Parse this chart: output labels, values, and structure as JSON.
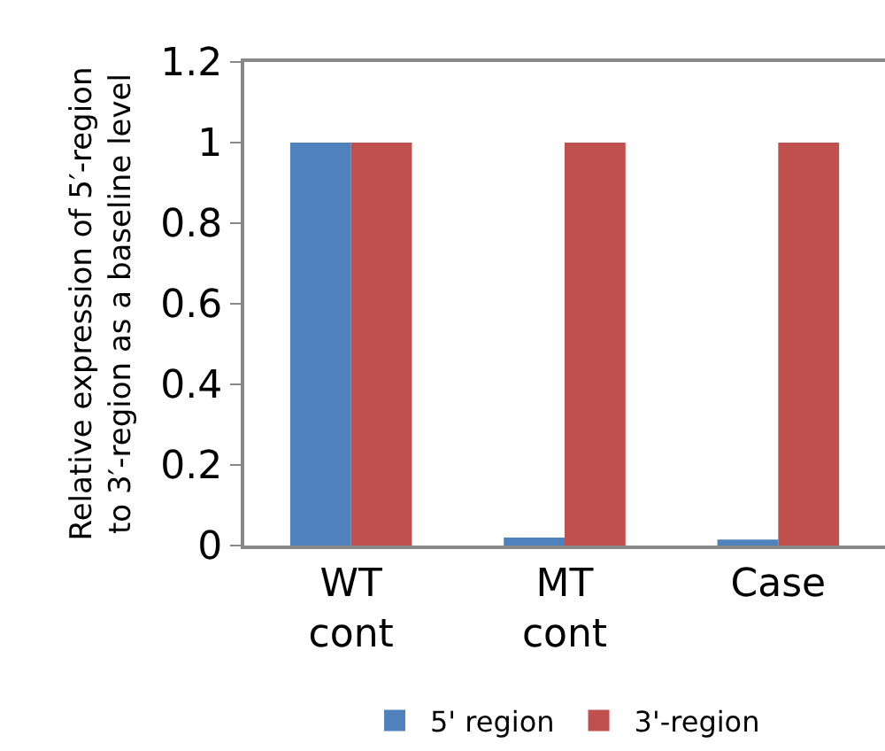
{
  "chart_data": {
    "type": "bar",
    "ylabel": "Relative expression of 5′-region to 3′-region as a baseline level",
    "categories": [
      "WT cont",
      "MT cont",
      "Case"
    ],
    "series": [
      {
        "name": "5' region",
        "color": "#4f81bd",
        "values": [
          1,
          0.02,
          0.015
        ]
      },
      {
        "name": "3'-region",
        "color": "#c0504d",
        "values": [
          1,
          1,
          1
        ]
      }
    ],
    "ylim": [
      0,
      1.2
    ],
    "yticks": [
      0,
      0.2,
      0.4,
      0.6,
      0.8,
      1,
      1.2
    ],
    "grid": false,
    "legend": "bottom"
  }
}
